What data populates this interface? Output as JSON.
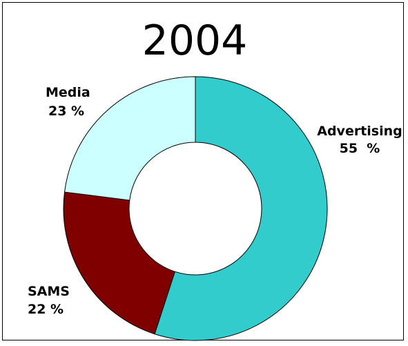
{
  "chart_data": {
    "type": "pie",
    "title": "2004",
    "slices": [
      {
        "name": "Advertising",
        "value": 55,
        "value_label": "55  %",
        "color": "#33cccc"
      },
      {
        "name": "SAMS",
        "value": 22,
        "value_label": "22 %",
        "color": "#800000"
      },
      {
        "name": "Media",
        "value": 23,
        "value_label": "23 %",
        "color": "#ccffff"
      }
    ],
    "legend": "none"
  }
}
